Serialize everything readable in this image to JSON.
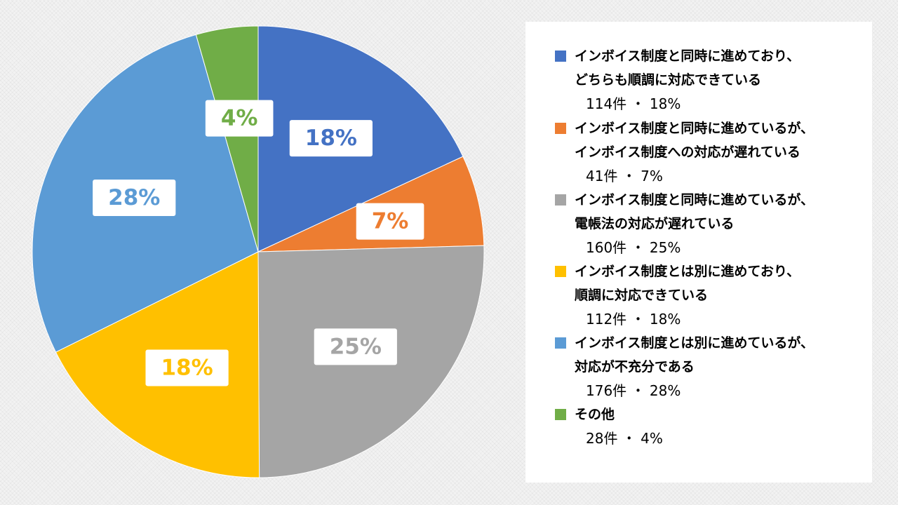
{
  "chart_data": {
    "type": "pie",
    "slices": [
      {
        "name": "インボイス制度と同時に進めており、どちらも順調に対応できている",
        "lines": [
          "インボイス制度と同時に進めており、",
          "どちらも順調に対応できている"
        ],
        "count_label": "114件 ・ 18%",
        "value": 114,
        "percent_label": "18%",
        "color": "#4472C4",
        "label_color": "#4472C4"
      },
      {
        "name": "インボイス制度と同時に進めているが、インボイス制度への対応が遅れている",
        "lines": [
          "インボイス制度と同時に進めているが、",
          "インボイス制度への対応が遅れている"
        ],
        "count_label": "41件 ・ 7%",
        "value": 41,
        "percent_label": "7%",
        "color": "#ED7D31",
        "label_color": "#ED7D31"
      },
      {
        "name": "インボイス制度と同時に進めているが、電帳法の対応が遅れている",
        "lines": [
          "インボイス制度と同時に進めているが、",
          "電帳法の対応が遅れている"
        ],
        "count_label": "160件 ・ 25%",
        "value": 160,
        "percent_label": "25%",
        "color": "#A5A5A5",
        "label_color": "#A5A5A5"
      },
      {
        "name": "インボイス制度とは別に進めており、順調に対応できている",
        "lines": [
          "インボイス制度とは別に進めており、",
          "順調に対応できている"
        ],
        "count_label": "112件 ・ 18%",
        "value": 112,
        "percent_label": "18%",
        "color": "#FFC000",
        "label_color": "#FFC000"
      },
      {
        "name": "インボイス制度とは別に進めているが、対応が不充分である",
        "lines": [
          "インボイス制度とは別に進めているが、",
          "対応が不充分である"
        ],
        "count_label": "176件 ・ 28%",
        "value": 176,
        "percent_label": "28%",
        "color": "#5B9BD5",
        "label_color": "#5B9BD5"
      },
      {
        "name": "その他",
        "lines": [
          "その他"
        ],
        "count_label": "28件 ・ 4%",
        "value": 28,
        "percent_label": "4%",
        "color": "#70AD47",
        "label_color": "#70AD47"
      }
    ],
    "legend_position": "right"
  }
}
